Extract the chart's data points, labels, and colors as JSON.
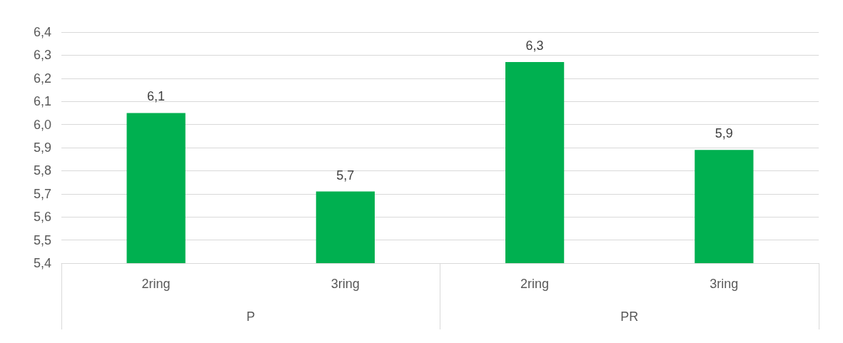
{
  "chart_data": {
    "type": "bar",
    "categories": [
      "2ring",
      "3ring",
      "2ring",
      "3ring"
    ],
    "values": [
      6.05,
      5.71,
      6.27,
      5.89
    ],
    "value_labels": [
      "6,1",
      "5,7",
      "6,3",
      "5,9"
    ],
    "color": "#00b050",
    "ylim": [
      5.4,
      6.4
    ],
    "yticks": [
      {
        "value": 5.4,
        "label": "5,4"
      },
      {
        "value": 5.5,
        "label": "5,5"
      },
      {
        "value": 5.6,
        "label": "5,6"
      },
      {
        "value": 5.7,
        "label": "5,7"
      },
      {
        "value": 5.8,
        "label": "5,8"
      },
      {
        "value": 5.9,
        "label": "5,9"
      },
      {
        "value": 6.0,
        "label": "6,0"
      },
      {
        "value": 6.1,
        "label": "6,1"
      },
      {
        "value": 6.2,
        "label": "6,2"
      },
      {
        "value": 6.3,
        "label": "6,3"
      },
      {
        "value": 6.4,
        "label": "6,4"
      }
    ],
    "annotations": [
      "P",
      "PR"
    ],
    "grid": "y"
  }
}
